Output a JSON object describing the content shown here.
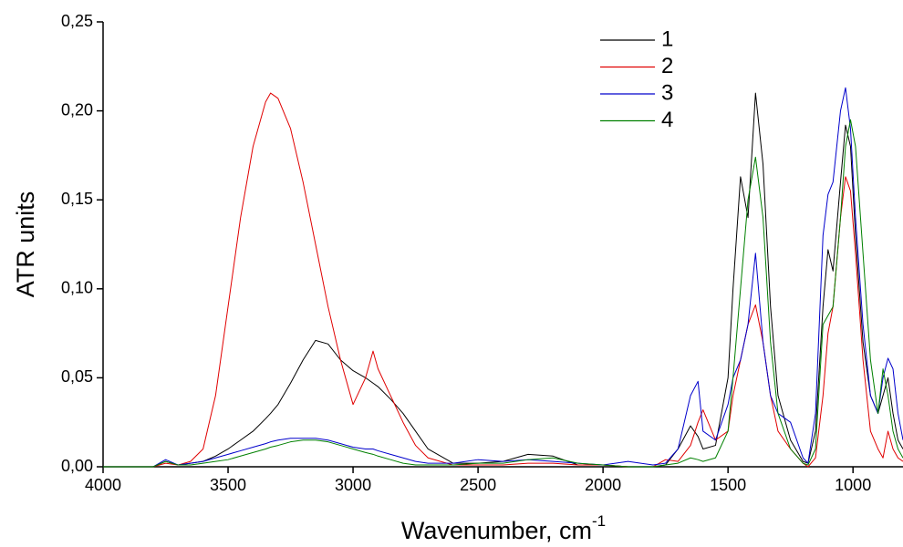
{
  "chart_data": {
    "type": "line",
    "xlabel": {
      "text": "Wavenumber, cm",
      "superscript": "-1"
    },
    "ylabel": "ATR units",
    "xlim": [
      4000,
      800
    ],
    "ylim": [
      0,
      0.25
    ],
    "xticks": [
      4000,
      3500,
      3000,
      2500,
      2000,
      1500,
      1000
    ],
    "yticks": [
      {
        "value": 0,
        "label": "0,00"
      },
      {
        "value": 0.05,
        "label": "0,05"
      },
      {
        "value": 0.1,
        "label": "0,10"
      },
      {
        "value": 0.15,
        "label": "0,15"
      },
      {
        "value": 0.2,
        "label": "0,20"
      },
      {
        "value": 0.25,
        "label": "0,25"
      }
    ],
    "legend": "top-right",
    "x": [
      4000,
      3900,
      3800,
      3750,
      3700,
      3650,
      3600,
      3550,
      3500,
      3450,
      3400,
      3350,
      3330,
      3300,
      3250,
      3200,
      3150,
      3100,
      3050,
      3000,
      2950,
      2920,
      2900,
      2850,
      2800,
      2750,
      2700,
      2600,
      2500,
      2400,
      2300,
      2200,
      2100,
      2000,
      1900,
      1800,
      1750,
      1700,
      1650,
      1620,
      1600,
      1550,
      1500,
      1480,
      1450,
      1420,
      1390,
      1360,
      1330,
      1300,
      1250,
      1200,
      1180,
      1150,
      1120,
      1100,
      1080,
      1050,
      1030,
      1010,
      990,
      960,
      930,
      900,
      880,
      860,
      840,
      820,
      800
    ],
    "series": [
      {
        "name": "1",
        "color": "#000000",
        "values": [
          0,
          0,
          0,
          0.003,
          0.001,
          0.002,
          0.003,
          0.006,
          0.01,
          0.015,
          0.02,
          0.027,
          0.03,
          0.035,
          0.047,
          0.06,
          0.071,
          0.069,
          0.06,
          0.054,
          0.05,
          0.047,
          0.045,
          0.038,
          0.03,
          0.02,
          0.01,
          0.002,
          0.002,
          0.003,
          0.007,
          0.006,
          0.001,
          0.001,
          0,
          0,
          0.001,
          0.01,
          0.023,
          0.017,
          0.01,
          0.012,
          0.05,
          0.1,
          0.163,
          0.14,
          0.21,
          0.17,
          0.09,
          0.04,
          0.015,
          0.003,
          0.002,
          0.02,
          0.09,
          0.122,
          0.11,
          0.16,
          0.192,
          0.18,
          0.13,
          0.07,
          0.04,
          0.03,
          0.04,
          0.05,
          0.03,
          0.015,
          0.01
        ]
      },
      {
        "name": "2",
        "color": "#e00000",
        "values": [
          0,
          0,
          0,
          0.002,
          0.001,
          0.003,
          0.01,
          0.04,
          0.09,
          0.14,
          0.18,
          0.205,
          0.21,
          0.207,
          0.19,
          0.16,
          0.125,
          0.09,
          0.06,
          0.035,
          0.05,
          0.065,
          0.055,
          0.04,
          0.025,
          0.012,
          0.005,
          0.001,
          0.001,
          0.001,
          0.002,
          0.002,
          0.001,
          0.001,
          0,
          0,
          0.004,
          0.003,
          0.012,
          0.025,
          0.032,
          0.015,
          0.02,
          0.04,
          0.06,
          0.08,
          0.091,
          0.07,
          0.04,
          0.02,
          0.01,
          0.002,
          0,
          0.005,
          0.04,
          0.075,
          0.09,
          0.14,
          0.163,
          0.155,
          0.12,
          0.06,
          0.02,
          0.01,
          0.005,
          0.02,
          0.01,
          0.005,
          0.003
        ]
      },
      {
        "name": "3",
        "color": "#0000cc",
        "values": [
          0,
          0,
          0,
          0.004,
          0.001,
          0.002,
          0.003,
          0.005,
          0.007,
          0.009,
          0.011,
          0.013,
          0.014,
          0.015,
          0.016,
          0.016,
          0.016,
          0.015,
          0.013,
          0.011,
          0.01,
          0.01,
          0.009,
          0.007,
          0.005,
          0.003,
          0.002,
          0.002,
          0.004,
          0.003,
          0.004,
          0.003,
          0.002,
          0.001,
          0.003,
          0.001,
          0.002,
          0.01,
          0.04,
          0.048,
          0.02,
          0.015,
          0.035,
          0.05,
          0.06,
          0.08,
          0.12,
          0.07,
          0.04,
          0.03,
          0.025,
          0.005,
          0.002,
          0.03,
          0.13,
          0.153,
          0.16,
          0.2,
          0.213,
          0.19,
          0.14,
          0.08,
          0.04,
          0.03,
          0.05,
          0.061,
          0.055,
          0.03,
          0.015
        ]
      },
      {
        "name": "4",
        "color": "#008000",
        "values": [
          0,
          0,
          0,
          0.003,
          0.001,
          0.001,
          0.002,
          0.003,
          0.004,
          0.006,
          0.008,
          0.01,
          0.011,
          0.012,
          0.014,
          0.015,
          0.015,
          0.014,
          0.012,
          0.01,
          0.008,
          0.007,
          0.006,
          0.004,
          0.002,
          0.001,
          0.001,
          0.001,
          0.002,
          0.002,
          0.004,
          0.005,
          0.002,
          0.001,
          0,
          0,
          0.001,
          0.002,
          0.005,
          0.004,
          0.003,
          0.005,
          0.02,
          0.05,
          0.1,
          0.15,
          0.174,
          0.14,
          0.07,
          0.03,
          0.01,
          0.002,
          0.001,
          0.01,
          0.08,
          0.085,
          0.09,
          0.14,
          0.18,
          0.195,
          0.18,
          0.12,
          0.06,
          0.03,
          0.055,
          0.04,
          0.02,
          0.01,
          0.005
        ]
      }
    ]
  }
}
